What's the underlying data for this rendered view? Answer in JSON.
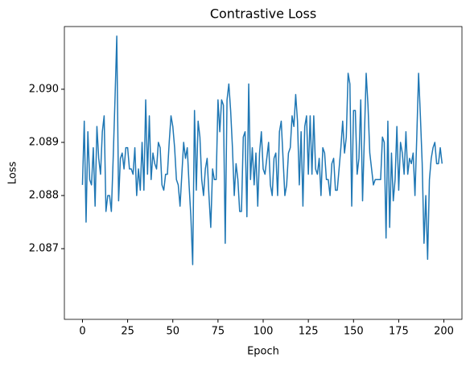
{
  "chart_data": {
    "type": "line",
    "title": "Contrastive Loss",
    "x_label": "Epoch",
    "y_label": "Loss",
    "x": [
      0,
      1,
      2,
      3,
      4,
      5,
      6,
      7,
      8,
      9,
      10,
      11,
      12,
      13,
      14,
      15,
      16,
      17,
      18,
      19,
      20,
      21,
      22,
      23,
      24,
      25,
      26,
      27,
      28,
      29,
      30,
      31,
      32,
      33,
      34,
      35,
      36,
      37,
      38,
      39,
      40,
      41,
      42,
      43,
      44,
      45,
      46,
      47,
      48,
      49,
      50,
      51,
      52,
      53,
      54,
      55,
      56,
      57,
      58,
      59,
      60,
      61,
      62,
      63,
      64,
      65,
      66,
      67,
      68,
      69,
      70,
      71,
      72,
      73,
      74,
      75,
      76,
      77,
      78,
      79,
      80,
      81,
      82,
      83,
      84,
      85,
      86,
      87,
      88,
      89,
      90,
      91,
      92,
      93,
      94,
      95,
      96,
      97,
      98,
      99,
      100,
      101,
      102,
      103,
      104,
      105,
      106,
      107,
      108,
      109,
      110,
      111,
      112,
      113,
      114,
      115,
      116,
      117,
      118,
      119,
      120,
      121,
      122,
      123,
      124,
      125,
      126,
      127,
      128,
      129,
      130,
      131,
      132,
      133,
      134,
      135,
      136,
      137,
      138,
      139,
      140,
      141,
      142,
      143,
      144,
      145,
      146,
      147,
      148,
      149,
      150,
      151,
      152,
      153,
      154,
      155,
      156,
      157,
      158,
      159,
      160,
      161,
      162,
      163,
      164,
      165,
      166,
      167,
      168,
      169,
      170,
      171,
      172,
      173,
      174,
      175,
      176,
      177,
      178,
      179,
      180,
      181,
      182,
      183,
      184,
      185,
      186,
      187,
      188,
      189,
      190,
      191,
      192,
      193,
      194,
      195,
      196,
      197,
      198,
      199
    ],
    "series": [
      {
        "name": "Contrastive Loss",
        "color": "#1f77b4",
        "values": [
          2.0882,
          2.0894,
          2.0875,
          2.0892,
          2.0883,
          2.0882,
          2.0889,
          2.0878,
          2.0893,
          2.0887,
          2.0884,
          2.0892,
          2.0895,
          2.0877,
          2.088,
          2.088,
          2.0877,
          2.0887,
          2.0898,
          2.091,
          2.0879,
          2.0887,
          2.0888,
          2.0885,
          2.0889,
          2.0889,
          2.0885,
          2.0885,
          2.0884,
          2.0889,
          2.088,
          2.0885,
          2.0881,
          2.089,
          2.0881,
          2.0898,
          2.0884,
          2.0895,
          2.0883,
          2.0888,
          2.0886,
          2.0885,
          2.089,
          2.0889,
          2.0882,
          2.0881,
          2.0884,
          2.0884,
          2.089,
          2.0895,
          2.0893,
          2.0889,
          2.0883,
          2.0882,
          2.0878,
          2.0884,
          2.089,
          2.0887,
          2.0889,
          2.0882,
          2.0876,
          2.0867,
          2.0896,
          2.0881,
          2.0894,
          2.0891,
          2.0883,
          2.088,
          2.0885,
          2.0887,
          2.088,
          2.0874,
          2.0885,
          2.0883,
          2.0883,
          2.0898,
          2.0892,
          2.0898,
          2.0897,
          2.0871,
          2.0898,
          2.0901,
          2.0896,
          2.0889,
          2.088,
          2.0886,
          2.0883,
          2.0877,
          2.0877,
          2.0891,
          2.0892,
          2.0876,
          2.0901,
          2.0883,
          2.0889,
          2.0882,
          2.0888,
          2.0878,
          2.0888,
          2.0892,
          2.0885,
          2.0884,
          2.0887,
          2.089,
          2.0882,
          2.088,
          2.0887,
          2.0888,
          2.088,
          2.0892,
          2.0894,
          2.0887,
          2.088,
          2.0882,
          2.0888,
          2.0889,
          2.0895,
          2.0893,
          2.0899,
          2.0894,
          2.0882,
          2.0892,
          2.0878,
          2.0893,
          2.0895,
          2.0884,
          2.0895,
          2.0884,
          2.0895,
          2.0885,
          2.0884,
          2.0887,
          2.088,
          2.0889,
          2.0888,
          2.0883,
          2.0883,
          2.088,
          2.0886,
          2.0887,
          2.0881,
          2.0881,
          2.0885,
          2.0889,
          2.0894,
          2.0888,
          2.0891,
          2.0903,
          2.0901,
          2.0878,
          2.0896,
          2.0896,
          2.0884,
          2.0887,
          2.0898,
          2.0879,
          2.0891,
          2.0903,
          2.0897,
          2.0888,
          2.0885,
          2.0882,
          2.0883,
          2.0883,
          2.0883,
          2.0883,
          2.0891,
          2.089,
          2.0872,
          2.0894,
          2.0874,
          2.0888,
          2.0879,
          2.0883,
          2.0893,
          2.0881,
          2.089,
          2.0888,
          2.0884,
          2.0892,
          2.0884,
          2.0887,
          2.0886,
          2.0888,
          2.088,
          2.0891,
          2.0903,
          2.0895,
          2.0886,
          2.0871,
          2.088,
          2.0868,
          2.0883,
          2.0887,
          2.0889,
          2.089,
          2.0886,
          2.0886,
          2.0889,
          2.0886
        ]
      }
    ],
    "xlim": [
      -10,
      210
    ],
    "xticks": [
      0,
      25,
      50,
      75,
      100,
      125,
      150,
      175,
      200
    ],
    "ylim": [
      2.08567,
      2.09118
    ],
    "yticks": [
      2.087,
      2.088,
      2.089,
      {
        "value": 2.09,
        "label": "2.090"
      }
    ],
    "grid": false
  }
}
